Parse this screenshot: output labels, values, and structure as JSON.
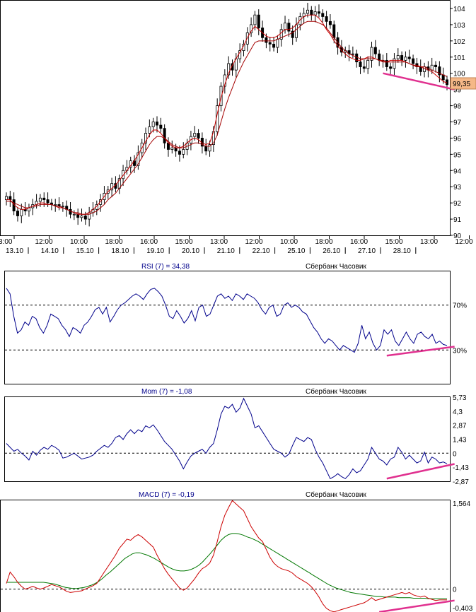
{
  "instrument": "Сбербанк Часовик",
  "colors": {
    "candle_up": "#ffffff",
    "candle_down": "#000000",
    "ma_fast": "#cc0000",
    "ma_slow": "#a40000",
    "rsi_line": "#00008b",
    "mom_line": "#00008b",
    "macd_line": "#cc0000",
    "signal_line": "#007700",
    "divergence": "#e0308f",
    "price_tag": "#f5b887",
    "title_blue": "#00008b"
  },
  "chart_data": [
    {
      "type": "candlestick",
      "ylim": [
        90,
        104.5
      ],
      "y_ticks": [
        "104",
        "103",
        "102",
        "101",
        "100",
        "99",
        "98",
        "97",
        "96",
        "95",
        "94",
        "93",
        "92",
        "91",
        "90"
      ],
      "last_price_label": "99,35",
      "x_time_labels": [
        "3:00",
        "12:00",
        "10:00",
        "18:00",
        "16:00",
        "15:00",
        "13:00",
        "12:00",
        "10:00",
        "18:00",
        "16:00",
        "15:00",
        "13:00",
        "12:00"
      ],
      "x_date_labels": [
        "13.10",
        "14.10",
        "15.10",
        "18.10",
        "19.10",
        "20.10",
        "21.10",
        "22.10",
        "25.10",
        "26.10",
        "27.10",
        "28.10"
      ],
      "close": [
        92.4,
        92.2,
        91.5,
        91.2,
        91.6,
        91.5,
        91.7,
        91.9,
        92.1,
        92.3,
        92.2,
        92.0,
        91.9,
        91.9,
        91.8,
        91.8,
        91.6,
        91.3,
        91.3,
        91.1,
        91.2,
        91.0,
        91.4,
        91.6,
        91.9,
        92.2,
        92.6,
        92.8,
        93.2,
        92.9,
        93.5,
        94.0,
        94.2,
        94.6,
        94.3,
        95.1,
        95.7,
        96.3,
        96.7,
        97.0,
        96.8,
        96.6,
        95.7,
        95.3,
        95.4,
        95.2,
        95.0,
        95.3,
        95.7,
        96.1,
        96.3,
        96.0,
        95.5,
        95.2,
        95.6,
        96.4,
        98.0,
        99.2,
        99.9,
        100.6,
        100.2,
        100.9,
        101.4,
        101.8,
        102.5,
        103.0,
        103.6,
        102.8,
        102.2,
        101.9,
        101.8,
        101.6,
        102.1,
        102.7,
        103.1,
        102.6,
        102.2,
        103.0,
        103.5,
        103.7,
        103.9,
        103.6,
        103.8,
        103.7,
        103.5,
        103.2,
        103.0,
        102.2,
        101.6,
        101.3,
        101.4,
        101.2,
        101.2,
        100.7,
        100.4,
        100.3,
        100.8,
        101.6,
        101.2,
        100.8,
        100.8,
        100.4,
        100.3,
        100.9,
        101.1,
        100.8,
        101.0,
        100.9,
        100.6,
        100.4,
        100.1,
        100.4,
        100.2,
        100.5,
        100.4,
        99.9,
        99.6,
        99.3
      ],
      "ma_fast": [
        92.2,
        92.2,
        91.9,
        91.7,
        91.6,
        91.6,
        91.7,
        91.8,
        91.9,
        92.0,
        92.0,
        91.9,
        91.9,
        91.8,
        91.7,
        91.7,
        91.6,
        91.5,
        91.4,
        91.3,
        91.3,
        91.3,
        91.4,
        91.6,
        91.8,
        92.1,
        92.4,
        92.7,
        92.9,
        93.1,
        93.4,
        93.7,
        94.0,
        94.3,
        94.6,
        95.0,
        95.4,
        95.8,
        96.2,
        96.5,
        96.5,
        96.3,
        96.0,
        95.7,
        95.5,
        95.4,
        95.4,
        95.5,
        95.7,
        95.9,
        96.0,
        95.9,
        95.7,
        95.6,
        95.7,
        96.4,
        97.5,
        98.5,
        99.3,
        100.0,
        100.5,
        100.9,
        101.3,
        101.7,
        102.2,
        102.6,
        102.9,
        102.7,
        102.5,
        102.3,
        102.2,
        102.2,
        102.3,
        102.5,
        102.7,
        102.7,
        102.8,
        103.0,
        103.3,
        103.5,
        103.6,
        103.6,
        103.6,
        103.4,
        103.1,
        102.7,
        102.4,
        102.0,
        101.7,
        101.4,
        101.2,
        101.0,
        100.9,
        100.8,
        100.8,
        100.9,
        101.0,
        101.0,
        100.9,
        100.8,
        100.7,
        100.7,
        100.8,
        100.8,
        100.8,
        100.8,
        100.7,
        100.6,
        100.5,
        100.4,
        100.4,
        100.3,
        100.2,
        100.1,
        99.9,
        99.7,
        99.5,
        99.4
      ],
      "ma_slow": [
        92.1,
        92.1,
        92.0,
        91.9,
        91.8,
        91.7,
        91.7,
        91.8,
        91.8,
        91.9,
        91.9,
        91.9,
        91.9,
        91.8,
        91.8,
        91.7,
        91.6,
        91.5,
        91.4,
        91.4,
        91.3,
        91.3,
        91.3,
        91.4,
        91.5,
        91.7,
        91.9,
        92.2,
        92.4,
        92.6,
        92.9,
        93.2,
        93.5,
        93.8,
        94.1,
        94.4,
        94.8,
        95.2,
        95.6,
        95.9,
        96.1,
        96.1,
        96.0,
        95.8,
        95.6,
        95.5,
        95.4,
        95.4,
        95.5,
        95.6,
        95.7,
        95.7,
        95.6,
        95.5,
        95.5,
        95.7,
        96.2,
        97.0,
        97.8,
        98.5,
        99.1,
        99.7,
        100.2,
        100.7,
        101.1,
        101.5,
        101.9,
        102.0,
        102.0,
        102.0,
        102.0,
        102.0,
        102.1,
        102.2,
        102.3,
        102.4,
        102.5,
        102.7,
        102.9,
        103.1,
        103.2,
        103.2,
        103.2,
        103.1,
        103.0,
        102.8,
        102.5,
        102.2,
        101.9,
        101.6,
        101.4,
        101.2,
        101.1,
        101.0,
        100.9,
        100.9,
        100.9,
        100.9,
        100.9,
        100.8,
        100.8,
        100.7,
        100.7,
        100.7,
        100.7,
        100.7,
        100.7,
        100.6,
        100.5,
        100.5,
        100.4,
        100.4,
        100.3,
        100.2,
        100.1,
        100.0,
        99.9,
        99.8
      ],
      "divergence_line": {
        "from": [
          100,
          100.0
        ],
        "to": [
          119,
          99.0
        ]
      }
    },
    {
      "type": "line",
      "title": "RSI (7) = 34,38",
      "caption": "Сбербанк Часовик",
      "ylim": [
        0,
        100
      ],
      "levels": [
        70,
        30
      ],
      "y_ticks": [
        "70%",
        "30%"
      ],
      "values": [
        85,
        80,
        60,
        45,
        48,
        55,
        52,
        60,
        58,
        50,
        45,
        52,
        62,
        60,
        58,
        52,
        48,
        42,
        50,
        48,
        45,
        52,
        55,
        60,
        66,
        68,
        62,
        68,
        55,
        60,
        66,
        70,
        72,
        75,
        78,
        80,
        78,
        75,
        80,
        84,
        85,
        82,
        78,
        70,
        60,
        58,
        65,
        60,
        54,
        58,
        65,
        56,
        68,
        70,
        60,
        62,
        70,
        78,
        80,
        76,
        78,
        74,
        80,
        78,
        75,
        80,
        78,
        76,
        72,
        66,
        62,
        68,
        70,
        60,
        62,
        70,
        72,
        68,
        70,
        68,
        64,
        62,
        56,
        50,
        46,
        40,
        36,
        40,
        38,
        34,
        30,
        34,
        32,
        30,
        28,
        36,
        52,
        40,
        46,
        36,
        30,
        34,
        48,
        44,
        48,
        38,
        34,
        40,
        46,
        40,
        36,
        44,
        46,
        42,
        40,
        44,
        36,
        38,
        35,
        34
      ],
      "divergence_line": {
        "from": [
          101,
          25
        ],
        "to": [
          119,
          33
        ]
      }
    },
    {
      "type": "line",
      "title": "Mom (7) = -1,08",
      "caption": "Сбербанк Часовик",
      "ylim": [
        -2.87,
        5.73
      ],
      "levels": [
        0
      ],
      "y_ticks": [
        "5,73",
        "4,3",
        "2,87",
        "1,43",
        "0",
        "-1,43",
        "-2,87"
      ],
      "values": [
        1.0,
        0.6,
        0.2,
        0.4,
        0.0,
        -0.3,
        -0.7,
        0.2,
        -0.2,
        0.3,
        0.6,
        0.4,
        0.8,
        0.6,
        0.3,
        -0.5,
        -0.4,
        -0.2,
        0.0,
        -0.3,
        -0.6,
        -0.5,
        -0.4,
        -0.2,
        0.2,
        0.5,
        0.8,
        0.6,
        1.0,
        1.6,
        1.8,
        1.4,
        2.0,
        2.4,
        2.0,
        2.4,
        2.2,
        2.8,
        2.6,
        2.9,
        2.4,
        1.8,
        1.2,
        0.8,
        0.4,
        -0.2,
        -0.8,
        -1.6,
        -0.9,
        -0.3,
        0.0,
        0.2,
        0.4,
        0.0,
        0.6,
        1.0,
        2.4,
        4.0,
        4.8,
        4.6,
        5.0,
        4.2,
        4.6,
        5.6,
        4.8,
        4.0,
        2.6,
        2.8,
        2.2,
        1.6,
        1.0,
        0.4,
        0.2,
        0.0,
        -0.4,
        -0.1,
        0.8,
        1.6,
        1.4,
        1.2,
        1.6,
        1.4,
        0.4,
        -0.4,
        -1.0,
        -1.8,
        -2.6,
        -2.4,
        -2.1,
        -2.4,
        -2.6,
        -2.2,
        -1.6,
        -2.0,
        -1.8,
        -1.2,
        -0.6,
        0.6,
        0.0,
        -0.6,
        -0.8,
        -1.2,
        -0.6,
        -0.4,
        0.6,
        0.1,
        -0.6,
        -0.2,
        -0.6,
        -1.0,
        -0.8,
        0.1,
        -1.0,
        -0.4,
        -0.6,
        -1.0,
        -0.9,
        -1.08
      ],
      "divergence_line": {
        "from": [
          101,
          -2.6
        ],
        "to": [
          119,
          -1.1
        ]
      }
    },
    {
      "type": "line",
      "title": "MACD (7) = -0,19",
      "caption": "Сбербанк Часовик",
      "ylim": [
        -0.403,
        1.564
      ],
      "levels": [
        0
      ],
      "y_ticks": [
        "1,564",
        "0",
        "-0,403"
      ],
      "macd": [
        0.1,
        0.3,
        0.22,
        0.12,
        0.05,
        0.0,
        0.02,
        0.05,
        0.02,
        0.0,
        0.02,
        0.05,
        0.08,
        0.06,
        0.04,
        0.0,
        -0.04,
        -0.06,
        -0.05,
        -0.04,
        -0.03,
        0.0,
        0.03,
        0.06,
        0.1,
        0.2,
        0.3,
        0.4,
        0.5,
        0.6,
        0.72,
        0.8,
        0.88,
        0.86,
        0.92,
        0.96,
        0.92,
        0.86,
        0.8,
        0.74,
        0.6,
        0.48,
        0.36,
        0.26,
        0.18,
        0.1,
        0.02,
        -0.02,
        0.02,
        0.1,
        0.18,
        0.28,
        0.36,
        0.4,
        0.46,
        0.6,
        0.84,
        1.1,
        1.3,
        1.44,
        1.56,
        1.5,
        1.44,
        1.38,
        1.24,
        1.1,
        1.0,
        0.9,
        0.84,
        0.7,
        0.56,
        0.46,
        0.4,
        0.36,
        0.34,
        0.32,
        0.28,
        0.22,
        0.18,
        0.14,
        0.1,
        0.04,
        -0.04,
        -0.14,
        -0.26,
        -0.34,
        -0.38,
        -0.4,
        -0.38,
        -0.36,
        -0.34,
        -0.32,
        -0.3,
        -0.28,
        -0.26,
        -0.24,
        -0.2,
        -0.15,
        -0.2,
        -0.18,
        -0.16,
        -0.14,
        -0.12,
        -0.1,
        -0.08,
        -0.06,
        -0.08,
        -0.06,
        -0.1,
        -0.12,
        -0.14,
        -0.12,
        -0.16,
        -0.18,
        -0.2,
        -0.19,
        -0.19,
        -0.19
      ],
      "signal": [
        0.12,
        0.12,
        0.12,
        0.12,
        0.12,
        0.12,
        0.12,
        0.12,
        0.12,
        0.12,
        0.12,
        0.11,
        0.1,
        0.09,
        0.07,
        0.05,
        0.03,
        0.02,
        0.01,
        0.01,
        0.02,
        0.03,
        0.05,
        0.07,
        0.1,
        0.14,
        0.19,
        0.25,
        0.3,
        0.36,
        0.42,
        0.48,
        0.54,
        0.58,
        0.62,
        0.64,
        0.64,
        0.62,
        0.6,
        0.57,
        0.54,
        0.5,
        0.46,
        0.42,
        0.38,
        0.35,
        0.33,
        0.32,
        0.32,
        0.33,
        0.35,
        0.38,
        0.42,
        0.48,
        0.55,
        0.62,
        0.7,
        0.78,
        0.86,
        0.92,
        0.96,
        0.98,
        0.98,
        0.97,
        0.95,
        0.92,
        0.9,
        0.87,
        0.84,
        0.8,
        0.76,
        0.72,
        0.68,
        0.64,
        0.6,
        0.56,
        0.52,
        0.48,
        0.44,
        0.4,
        0.36,
        0.32,
        0.28,
        0.24,
        0.2,
        0.16,
        0.12,
        0.08,
        0.05,
        0.02,
        0.0,
        -0.02,
        -0.04,
        -0.06,
        -0.07,
        -0.08,
        -0.09,
        -0.1,
        -0.11,
        -0.12,
        -0.13,
        -0.13,
        -0.14,
        -0.14,
        -0.14,
        -0.14,
        -0.15,
        -0.15,
        -0.15,
        -0.15,
        -0.16,
        -0.16,
        -0.16,
        -0.16,
        -0.17,
        -0.17,
        -0.17,
        -0.17,
        -0.17,
        -0.17
      ],
      "divergence_line": {
        "from": [
          99,
          -0.403
        ],
        "to": [
          119,
          -0.2
        ]
      }
    }
  ]
}
